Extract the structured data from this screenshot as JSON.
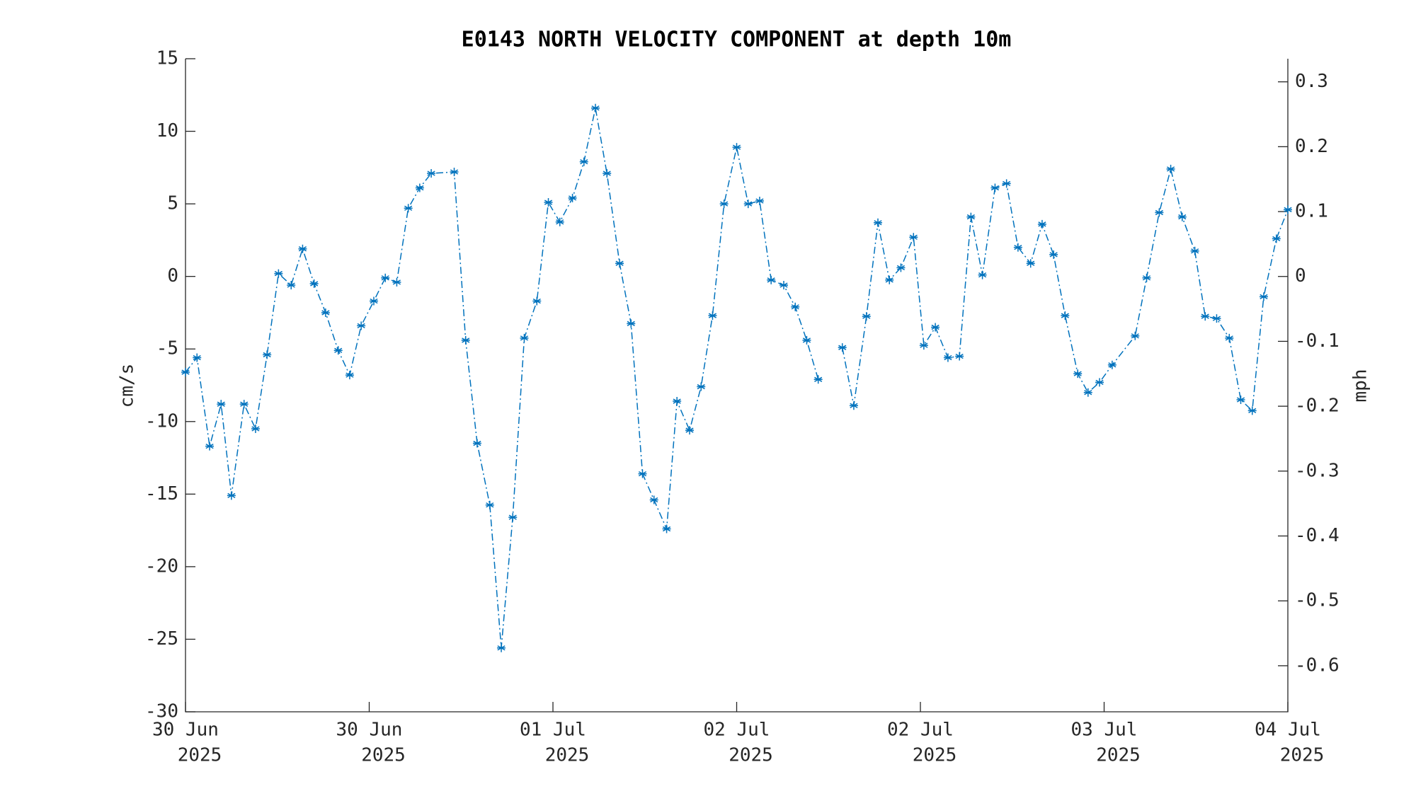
{
  "chart_data": {
    "type": "line",
    "title": "E0143 NORTH VELOCITY COMPONENT at depth 10m",
    "ylabel": "cm/s",
    "y2label": "mph",
    "x": [
      0,
      1.0,
      2.1,
      3.1,
      4.0,
      5.1,
      6.1,
      7.1,
      8.1,
      9.2,
      10.2,
      11.2,
      12.2,
      13.3,
      14.3,
      15.3,
      16.4,
      17.4,
      18.4,
      19.4,
      20.4,
      21.4,
      23.4,
      24.4,
      25.4,
      26.5,
      27.5,
      28.5,
      29.5,
      30.6,
      31.6,
      32.6,
      33.7,
      34.7,
      35.7,
      36.7,
      37.8,
      38.8,
      39.8,
      40.8,
      41.9,
      42.8,
      43.9,
      44.9,
      45.9,
      46.9,
      48.0,
      49.0,
      50.0,
      51.0,
      52.1,
      53.1,
      54.1,
      55.1,
      56.2,
      57.2,
      58.2,
      59.3,
      60.3,
      61.3,
      62.3,
      63.4,
      64.3,
      65.3,
      66.4,
      67.4,
      68.4,
      69.4,
      70.5,
      71.5,
      72.5,
      73.6,
      74.6,
      75.6,
      76.6,
      77.7,
      78.6,
      79.6,
      80.7,
      82.7,
      83.7,
      84.8,
      85.8,
      86.8,
      87.9,
      88.8,
      89.8,
      90.9,
      91.9,
      92.9,
      93.9,
      95.0,
      96.0
    ],
    "series": [
      {
        "color": "#0072bd",
        "values": [
          -6.6,
          -5.6,
          -11.7,
          -8.8,
          -15.1,
          -8.8,
          -10.5,
          -5.4,
          0.2,
          -0.6,
          1.9,
          -0.5,
          -2.5,
          -5.1,
          -6.8,
          -3.4,
          -1.7,
          -0.1,
          -0.4,
          4.7,
          6.1,
          7.1,
          7.2,
          -4.4,
          -11.5,
          -15.75,
          -25.6,
          -16.6,
          -4.25,
          -1.7,
          5.1,
          3.75,
          5.4,
          7.9,
          11.6,
          7.1,
          0.9,
          -3.25,
          -13.6,
          -15.4,
          -17.4,
          -8.6,
          -10.6,
          -7.6,
          -2.7,
          5.0,
          8.9,
          5.0,
          5.2,
          -0.25,
          -0.6,
          -2.1,
          -4.4,
          -7.1,
          null,
          -4.9,
          -8.9,
          -2.75,
          3.7,
          -0.25,
          0.6,
          2.7,
          -4.75,
          -3.5,
          -5.6,
          -5.5,
          4.1,
          0.1,
          6.1,
          6.4,
          2.0,
          0.9,
          3.6,
          1.5,
          -2.7,
          -6.7,
          -8.0,
          -7.3,
          -6.1,
          -4.1,
          -0.1,
          4.4,
          7.4,
          4.1,
          1.75,
          -2.75,
          -2.9,
          -4.25,
          -8.5,
          -9.25,
          -1.4,
          2.6,
          4.6
        ]
      }
    ],
    "xlim": [
      0,
      96
    ],
    "xticks": [
      {
        "value": 0,
        "label": [
          "30 Jun",
          "2025"
        ]
      },
      {
        "value": 16,
        "label": [
          "30 Jun",
          "2025"
        ]
      },
      {
        "value": 32,
        "label": [
          "01 Jul",
          "2025"
        ]
      },
      {
        "value": 48,
        "label": [
          "02 Jul",
          "2025"
        ]
      },
      {
        "value": 64,
        "label": [
          "02 Jul",
          "2025"
        ]
      },
      {
        "value": 80,
        "label": [
          "03 Jul",
          "2025"
        ]
      },
      {
        "value": 96,
        "label": [
          "04 Jul",
          "2025"
        ]
      }
    ],
    "ylim": [
      -30,
      15
    ],
    "yticks": [
      -30,
      -25,
      -20,
      -15,
      -10,
      -5,
      0,
      5,
      10,
      15
    ],
    "y2lim": [
      -0.671,
      0.3356
    ],
    "y2ticks": [
      -0.6,
      -0.5,
      -0.4,
      -0.3,
      -0.2,
      -0.1,
      0,
      0.1,
      0.2,
      0.3
    ]
  }
}
